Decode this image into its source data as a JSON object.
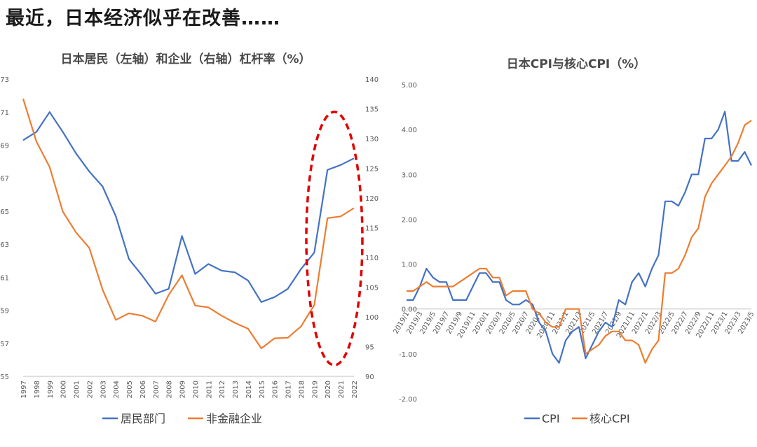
{
  "headline": "最近，日本经济似乎在改善……",
  "chart_data": [
    {
      "type": "line",
      "title": "日本居民（左轴）和企业（右轴）杠杆率（%）",
      "categories": [
        "1997",
        "1998",
        "1999",
        "2000",
        "2001",
        "2002",
        "2003",
        "2004",
        "2005",
        "2006",
        "2007",
        "2008",
        "2009",
        "2010",
        "2011",
        "2012",
        "2013",
        "2014",
        "2015",
        "2016",
        "2017",
        "2018",
        "2019",
        "2020",
        "2021",
        "2022"
      ],
      "y_left": {
        "range": [
          55,
          73
        ],
        "ticks": [
          "55",
          "57",
          "59",
          "61",
          "63",
          "65",
          "67",
          "69",
          "71",
          "73"
        ]
      },
      "y_right": {
        "range": [
          90,
          140
        ],
        "ticks": [
          "90",
          "95",
          "100",
          "105",
          "110",
          "115",
          "120",
          "125",
          "130",
          "135",
          "140"
        ]
      },
      "series": [
        {
          "name": "居民部门",
          "axis": "left",
          "color": "#4472C4",
          "values": [
            69.3,
            69.8,
            71.0,
            69.8,
            68.5,
            67.4,
            66.5,
            64.7,
            62.1,
            61.1,
            60.0,
            60.3,
            63.5,
            61.2,
            61.8,
            61.4,
            61.3,
            60.8,
            59.5,
            59.8,
            60.3,
            61.5,
            62.5,
            67.5,
            67.8,
            68.2
          ]
        },
        {
          "name": "非金融企业",
          "axis": "right",
          "color": "#ED7D31",
          "values": [
            136.7,
            129.5,
            125.2,
            117.7,
            114.2,
            111.6,
            104.6,
            99.5,
            100.6,
            100.2,
            99.2,
            103.7,
            107.0,
            101.9,
            101.6,
            100.2,
            99.0,
            98.0,
            94.7,
            96.4,
            96.5,
            98.4,
            102.0,
            116.6,
            116.9,
            118.3
          ]
        }
      ],
      "annotation": "red dashed ellipse highlighting 2019–2022"
    },
    {
      "type": "line",
      "title": "日本CPI与核心CPI（%）",
      "x": [
        "2019/1",
        "2019/2",
        "2019/3",
        "2019/4",
        "2019/5",
        "2019/6",
        "2019/7",
        "2019/8",
        "2019/9",
        "2019/10",
        "2019/11",
        "2019/12",
        "2020/1",
        "2020/2",
        "2020/3",
        "2020/4",
        "2020/5",
        "2020/6",
        "2020/7",
        "2020/8",
        "2020/9",
        "2020/10",
        "2020/11",
        "2020/12",
        "2021/1",
        "2021/2",
        "2021/3",
        "2021/4",
        "2021/5",
        "2021/6",
        "2021/7",
        "2021/8",
        "2021/9",
        "2021/10",
        "2021/11",
        "2021/12",
        "2022/1",
        "2022/2",
        "2022/3",
        "2022/4",
        "2022/5",
        "2022/6",
        "2022/7",
        "2022/8",
        "2022/9",
        "2022/10",
        "2022/11",
        "2022/12",
        "2023/1",
        "2023/2",
        "2023/3",
        "2023/4",
        "2023/5"
      ],
      "tick_labels": [
        "2019/1",
        "2019/3",
        "2019/5",
        "2019/7",
        "2019/9",
        "2019/11",
        "2020/1",
        "2020/3",
        "2020/5",
        "2020/7",
        "2020/9",
        "2020/11",
        "2021/1",
        "2021/3",
        "2021/5",
        "2021/7",
        "2021/9",
        "2021/11",
        "2022/1",
        "2022/3",
        "2022/5",
        "2022/7",
        "2022/9",
        "2022/11",
        "2023/1",
        "2023/3",
        "2023/5"
      ],
      "y": {
        "range": [
          -2,
          5
        ],
        "ticks": [
          "5.00",
          "4.00",
          "3.00",
          "2.00",
          "1.00",
          "0.00",
          "-1.00",
          "-2.00"
        ]
      },
      "series": [
        {
          "name": "CPI",
          "color": "#4472C4",
          "values": [
            0.2,
            0.2,
            0.5,
            0.9,
            0.7,
            0.6,
            0.6,
            0.2,
            0.2,
            0.2,
            0.5,
            0.8,
            0.8,
            0.6,
            0.6,
            0.2,
            0.1,
            0.1,
            0.2,
            0.1,
            -0.3,
            -0.5,
            -1.0,
            -1.2,
            -0.7,
            -0.5,
            -0.4,
            -1.1,
            -0.8,
            -0.5,
            -0.3,
            -0.4,
            0.2,
            0.1,
            0.6,
            0.8,
            0.5,
            0.9,
            1.2,
            2.4,
            2.4,
            2.3,
            2.6,
            3.0,
            3.0,
            3.8,
            3.8,
            4.0,
            4.4,
            3.3,
            3.3,
            3.5,
            3.2
          ]
        },
        {
          "name": "核心CPI",
          "color": "#ED7D31",
          "values": [
            0.4,
            0.4,
            0.5,
            0.6,
            0.5,
            0.5,
            0.5,
            0.5,
            0.6,
            0.7,
            0.8,
            0.9,
            0.9,
            0.7,
            0.7,
            0.3,
            0.4,
            0.4,
            0.4,
            0.0,
            -0.1,
            -0.3,
            -0.4,
            -0.4,
            0.0,
            0.0,
            0.0,
            -1.0,
            -0.9,
            -0.8,
            -0.6,
            -0.5,
            -0.5,
            -0.7,
            -0.7,
            -0.8,
            -1.2,
            -0.9,
            -0.7,
            0.8,
            0.8,
            0.9,
            1.2,
            1.6,
            1.8,
            2.5,
            2.8,
            3.0,
            3.2,
            3.4,
            3.7,
            4.1,
            4.2
          ]
        }
      ]
    }
  ]
}
